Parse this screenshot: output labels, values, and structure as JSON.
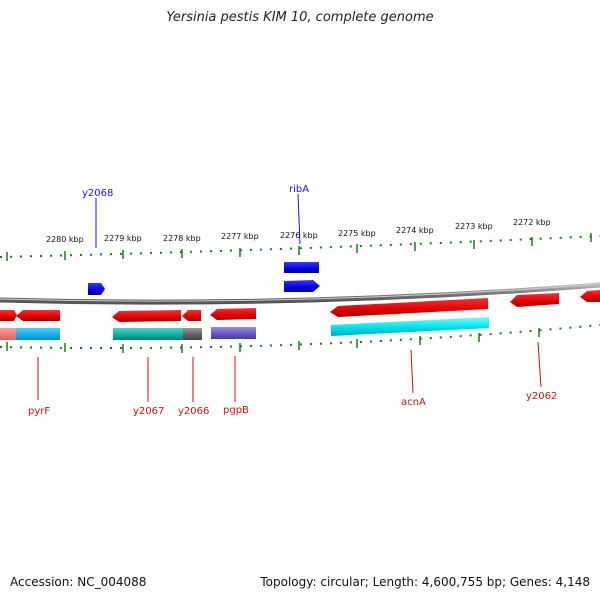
{
  "title": "Yersinia pestis KIM 10, complete genome",
  "footer": {
    "accession": "Accession: NC_004088",
    "info": "Topology: circular; Length: 4,600,755 bp; Genes: 4,148"
  },
  "scale_labels": [
    "2280 kbp",
    "2279 kbp",
    "2278 kbp",
    "2277 kbp",
    "2276 kbp",
    "2275 kbp",
    "2274 kbp",
    "2273 kbp",
    "2272 kbp"
  ],
  "genes_top": [
    {
      "name": "y2068",
      "color": "#1a1ad6"
    },
    {
      "name": "ribA",
      "color": "#1a1ad6"
    }
  ],
  "genes_bottom": [
    {
      "name": "pyrF",
      "color": "#cc1111"
    },
    {
      "name": "y2067",
      "color": "#cc1111"
    },
    {
      "name": "y2066",
      "color": "#cc1111"
    },
    {
      "name": "pgpB",
      "color": "#cc1111"
    },
    {
      "name": "acnA",
      "color": "#cc1111"
    },
    {
      "name": "y2062",
      "color": "#cc1111"
    }
  ],
  "colors": {
    "forward_strand": "#0000ff",
    "reverse_strand": "#ff0000",
    "backbone": "#808080",
    "ticks": "#1a7a1a"
  }
}
